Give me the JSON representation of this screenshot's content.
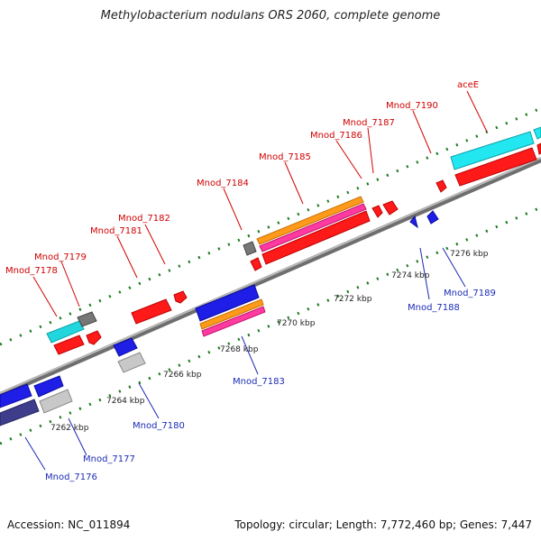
{
  "title": "Methylobacterium nodulans ORS 2060, complete genome",
  "footer": {
    "accession": "Accession: NC_011894",
    "summary": "Topology: circular; Length: 7,772,460 bp; Genes: 7,447"
  },
  "colors": {
    "upper_label": "#d10000",
    "lower_label": "#1a2bb5",
    "axis": "#8a8a8a",
    "tick": "#1e7a1e"
  },
  "ruler": [
    "7262 kbp",
    "7264 kbp",
    "7266 kbp",
    "7268 kbp",
    "7270 kbp",
    "7272 kbp",
    "7274 kbp",
    "7276 kbp"
  ],
  "upper_labels": [
    "Mnod_7178",
    "Mnod_7179",
    "Mnod_7181",
    "Mnod_7182",
    "Mnod_7184",
    "Mnod_7185",
    "Mnod_7186",
    "Mnod_7187",
    "Mnod_7190",
    "aceE"
  ],
  "lower_labels": [
    "Mnod_7176",
    "Mnod_7177",
    "Mnod_7180",
    "Mnod_7183",
    "Mnod_7188",
    "Mnod_7189"
  ]
}
